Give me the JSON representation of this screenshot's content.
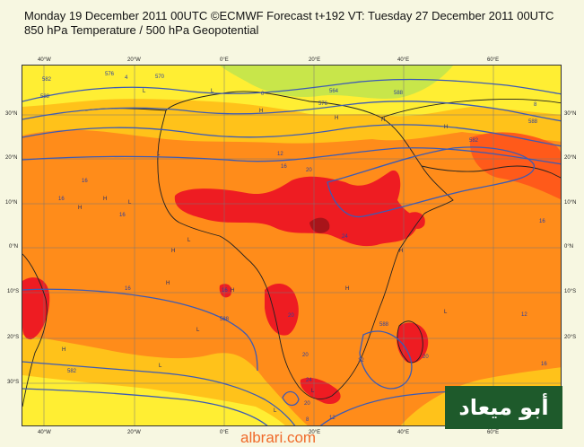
{
  "header": {
    "title_line1": "Monday 19 December 2011 00UTC ©ECMWF Forecast t+192 VT: Tuesday 27 December 2011 00UTC",
    "title_line2": "850 hPa Temperature / 500 hPa Geopotential"
  },
  "axes": {
    "longitude_labels": [
      "40°W",
      "20°W",
      "0°E",
      "20°E",
      "40°E",
      "60°E"
    ],
    "latitude_labels": [
      "30°N",
      "20°N",
      "10°N",
      "0°N",
      "10°S",
      "20°S",
      "30°S"
    ]
  },
  "map": {
    "colors": {
      "cold_green": "#c8e64a",
      "yellow": "#ffee33",
      "light_orange": "#ffc21a",
      "orange": "#ff8c1a",
      "red_orange": "#ff5a1a",
      "red": "#ee1c22",
      "dark_red": "#a8141a",
      "contour_blue": "#3c5bb5",
      "coast_black": "#222222"
    },
    "contour_labels": [
      "576",
      "4",
      "570",
      "582",
      "588",
      "0",
      "564",
      "576",
      "588",
      "588",
      "582",
      "8",
      "12",
      "16",
      "20",
      "24",
      "16",
      "16",
      "16",
      "16",
      "16",
      "588",
      "20",
      "20",
      "24",
      "20",
      "12",
      "8",
      "588",
      "12",
      "20",
      "16",
      "12",
      "16",
      "582"
    ],
    "pressure_marks": [
      "L",
      "L",
      "H",
      "H",
      "H",
      "H",
      "L",
      "H",
      "H",
      "L",
      "L",
      "H",
      "H",
      "L",
      "H",
      "L",
      "H",
      "L",
      "L",
      "H",
      "H",
      "L"
    ]
  },
  "watermark": {
    "text": "albrari.com"
  },
  "logo": {
    "text": "أبو ميعاد"
  }
}
